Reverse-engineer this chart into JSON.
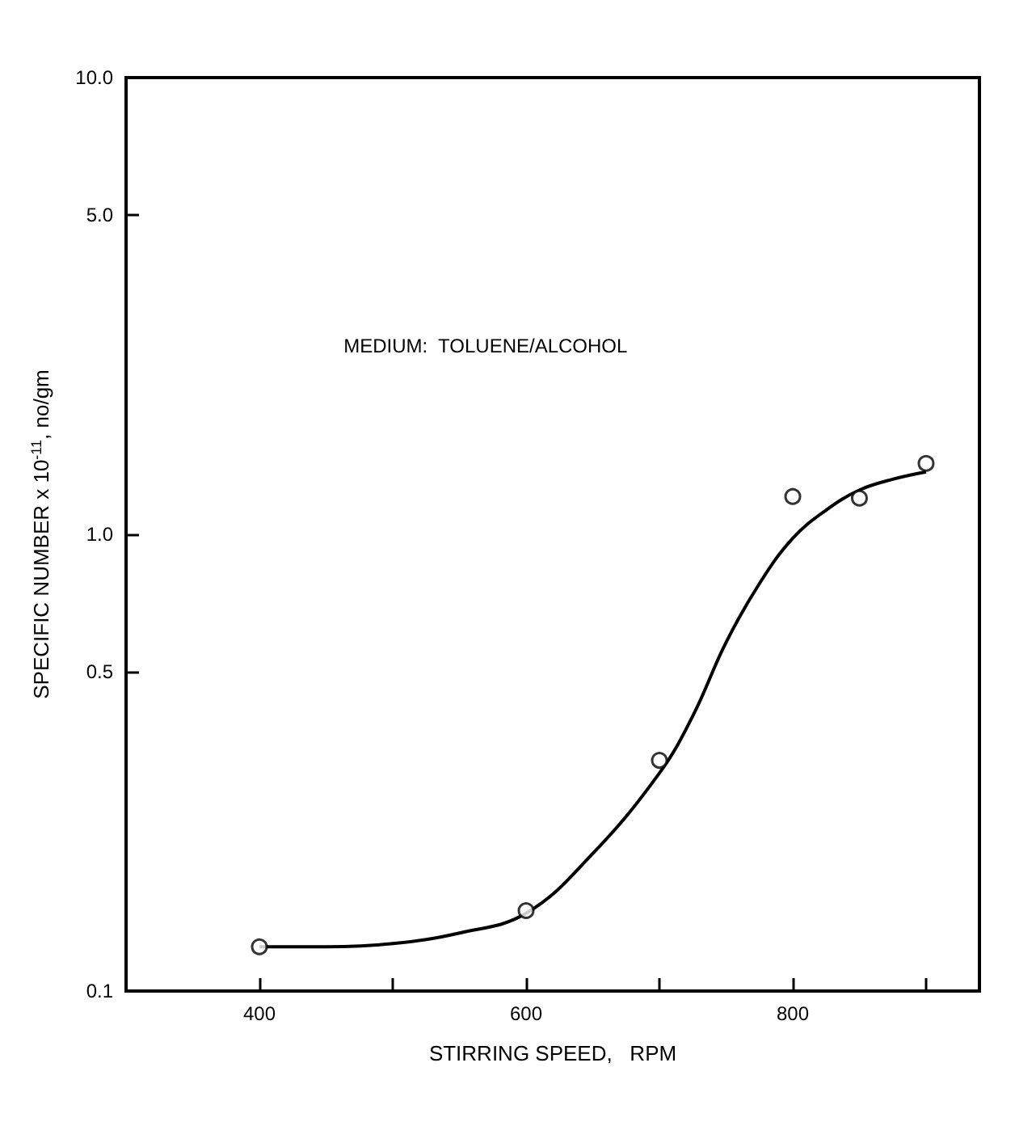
{
  "chart_data": {
    "type": "scatter",
    "xlabel": "STIRRING SPEED,   RPM",
    "ylabel": "SPECIFIC NUMBER x 10$^{-11}$, no/gm",
    "annotations": [
      "MEDIUM:  TOLUENE/ALCOHOL"
    ],
    "log": "y",
    "grid": false,
    "marker": "circle",
    "xlim": [
      300,
      940
    ],
    "xticks": [
      400,
      {
        "value": 500,
        "label": null
      },
      600,
      {
        "value": 700,
        "label": null
      },
      800,
      {
        "value": 900,
        "label": null
      }
    ],
    "ylim": [
      0.1,
      10
    ],
    "yticks": [
      {
        "value": 0.1,
        "label": "0.1"
      },
      {
        "value": 0.5,
        "label": "0.5"
      },
      {
        "value": 1,
        "label": "1.0"
      },
      {
        "value": 5,
        "label": "5.0"
      },
      {
        "value": 10,
        "label": "10.0"
      }
    ],
    "series": [
      {
        "color": "#000000",
        "x": [
          400,
          600,
          700,
          800,
          850,
          900
        ],
        "values": [
          0.125,
          0.15,
          0.32,
          1.21,
          1.2,
          1.43
        ]
      },
      {
        "type": "line",
        "color": "#000000",
        "marker": "none",
        "line_style": "solid",
        "x": [
          400,
          450,
          500,
          550,
          600,
          650,
          700,
          725,
          750,
          775,
          800,
          825,
          850,
          875,
          900
        ],
        "values": [
          0.125,
          0.125,
          0.127,
          0.134,
          0.148,
          0.2,
          0.3,
          0.4,
          0.58,
          0.78,
          0.98,
          1.13,
          1.25,
          1.32,
          1.37
        ]
      }
    ]
  }
}
